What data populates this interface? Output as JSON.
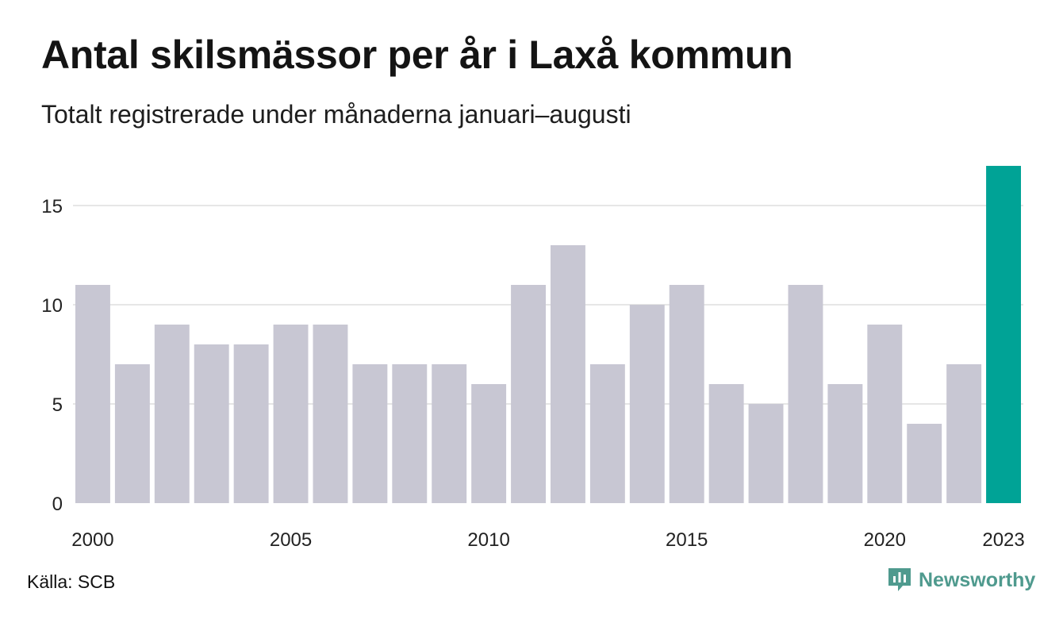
{
  "title": "Antal skilsmässor per år i Laxå kommun",
  "subtitle": "Totalt registrerade under månaderna januari–augusti",
  "source": "Källa: SCB",
  "brand": {
    "name": "Newsworthy",
    "icon": "newsworthy-logo-icon",
    "color": "#4f9a8e"
  },
  "colors": {
    "bar": "#c8c7d3",
    "highlight": "#00a396",
    "grid": "#e6e6e6"
  },
  "chart_data": {
    "type": "bar",
    "title": "Antal skilsmässor per år i Laxå kommun",
    "subtitle": "Totalt registrerade under månaderna januari–augusti",
    "categories": [
      "2000",
      "2001",
      "2002",
      "2003",
      "2004",
      "2005",
      "2006",
      "2007",
      "2008",
      "2009",
      "2010",
      "2011",
      "2012",
      "2013",
      "2014",
      "2015",
      "2016",
      "2017",
      "2018",
      "2019",
      "2020",
      "2021",
      "2022",
      "2023"
    ],
    "values": [
      11,
      7,
      9,
      8,
      8,
      9,
      9,
      7,
      7,
      7,
      6,
      11,
      13,
      7,
      10,
      11,
      6,
      5,
      11,
      6,
      9,
      4,
      7,
      17
    ],
    "highlight_category": "2023",
    "x_tick_labels": [
      "2000",
      "2005",
      "2010",
      "2015",
      "2020",
      "2023"
    ],
    "y_ticks": [
      0,
      5,
      10,
      15
    ],
    "ylim": [
      0,
      17
    ],
    "grid": true,
    "legend": "none",
    "xlabel": "",
    "ylabel": ""
  }
}
